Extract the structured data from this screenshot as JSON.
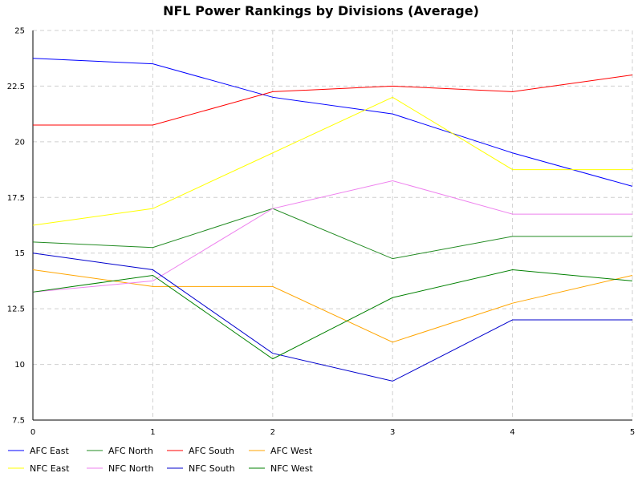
{
  "chart_data": {
    "type": "line",
    "title": "NFL Power Rankings by Divisions (Average)",
    "xlabel": "",
    "ylabel": "",
    "x": [
      0,
      1,
      2,
      3,
      4,
      5
    ],
    "x_tick_labels": [
      "0",
      "1",
      "2",
      "3",
      "4",
      "5"
    ],
    "xlim": [
      0,
      5
    ],
    "ylim": [
      7.5,
      25
    ],
    "y_ticks": [
      7.5,
      10,
      12.5,
      15,
      17.5,
      20,
      22.5,
      25
    ],
    "y_tick_labels": [
      "7.5",
      "10",
      "12.5",
      "15",
      "17.5",
      "20",
      "22.5",
      "25"
    ],
    "grid": true,
    "legend_position": "bottom",
    "series": [
      {
        "name": "AFC East",
        "color": "#0000ff",
        "values": [
          23.75,
          23.5,
          22.0,
          21.25,
          19.5,
          18.0
        ]
      },
      {
        "name": "AFC North",
        "color": "#228b22",
        "values": [
          15.5,
          15.25,
          17.0,
          14.75,
          15.75,
          15.75
        ]
      },
      {
        "name": "AFC South",
        "color": "#ff0000",
        "values": [
          20.75,
          20.75,
          22.25,
          22.5,
          22.25,
          23.0
        ]
      },
      {
        "name": "AFC West",
        "color": "#ffa500",
        "values": [
          14.25,
          13.5,
          13.5,
          11.0,
          12.75,
          14.0
        ]
      },
      {
        "name": "NFC East",
        "color": "#ffff00",
        "values": [
          16.25,
          17.0,
          19.5,
          22.0,
          18.75,
          18.75
        ]
      },
      {
        "name": "NFC North",
        "color": "#ee82ee",
        "values": [
          13.25,
          13.75,
          17.0,
          18.25,
          16.75,
          16.75
        ]
      },
      {
        "name": "NFC South",
        "color": "#0000cd",
        "values": [
          15.0,
          14.25,
          10.5,
          9.25,
          12.0,
          12.0
        ]
      },
      {
        "name": "NFC West",
        "color": "#008000",
        "values": [
          13.25,
          14.0,
          10.25,
          13.0,
          14.25,
          13.75
        ]
      }
    ]
  }
}
